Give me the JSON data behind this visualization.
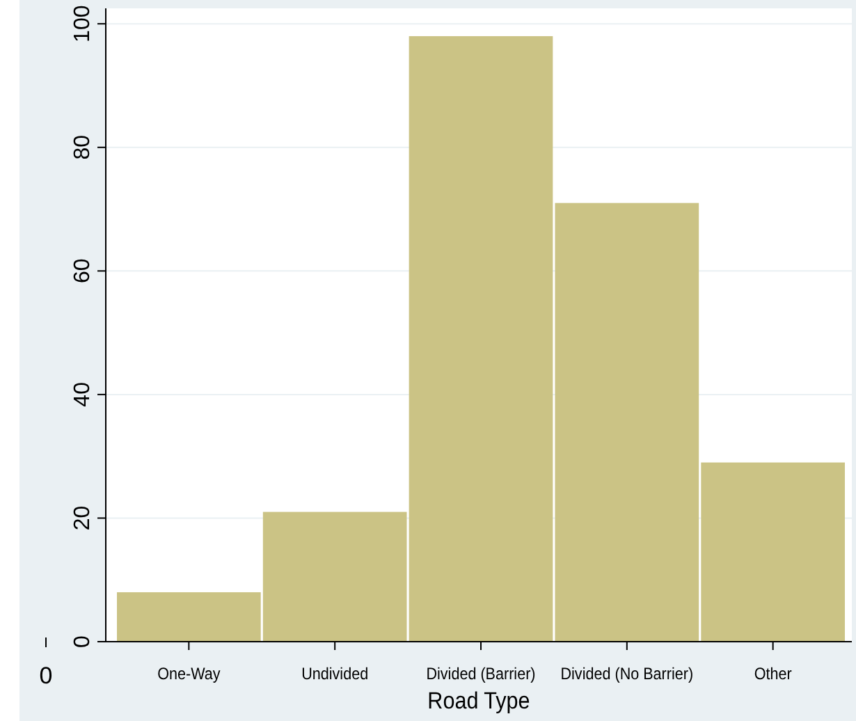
{
  "chart_data": {
    "type": "bar",
    "xlabel": "Road Type",
    "categories": [
      "One-Way",
      "Undivided",
      "Divided (Barrier)",
      "Divided (No Barrier)",
      "Other"
    ],
    "values": [
      8,
      21,
      98,
      71,
      29
    ],
    "color": "#cbc385",
    "ylim": [
      0,
      102.5
    ],
    "yticks": [
      0,
      20,
      40,
      60,
      80,
      100
    ],
    "grid": "y",
    "annotations": [
      "0"
    ]
  }
}
